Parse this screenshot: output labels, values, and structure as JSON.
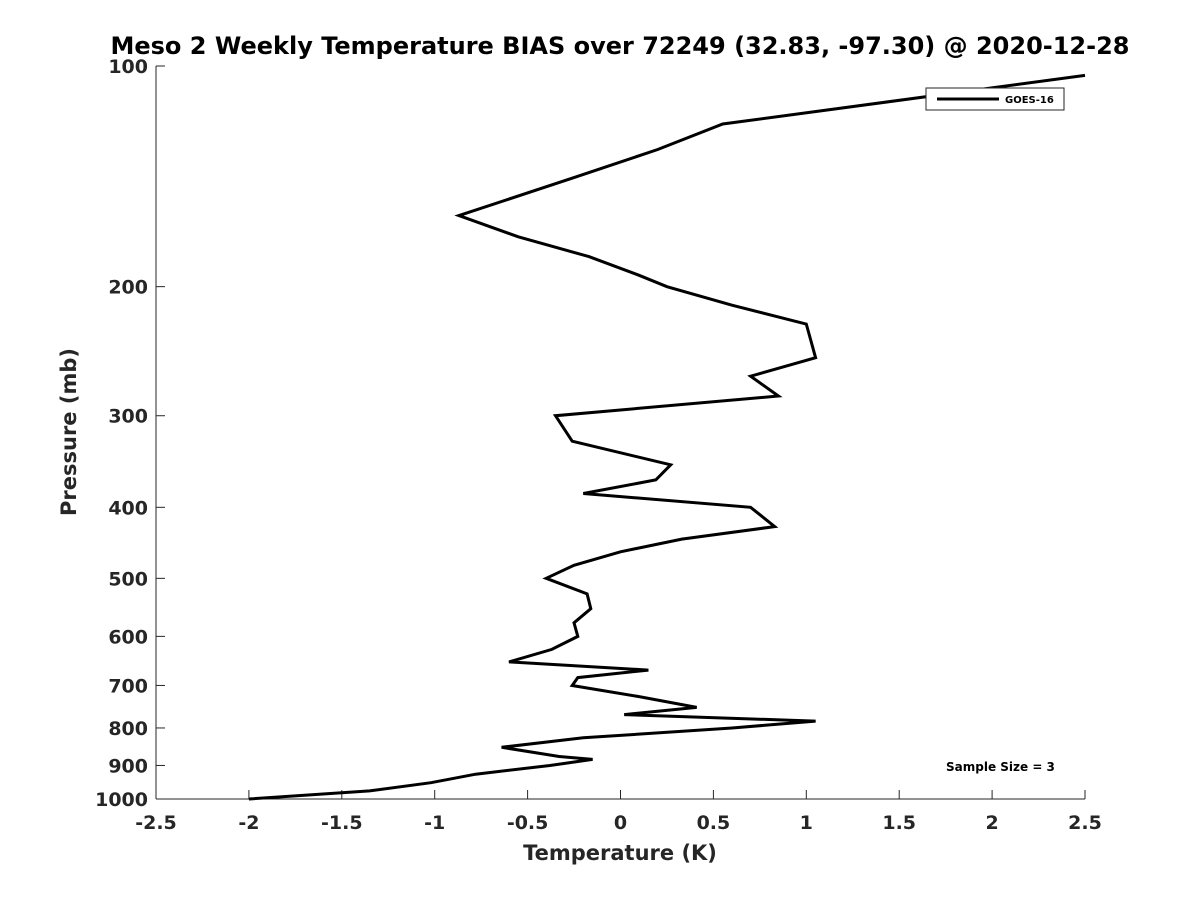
{
  "chart_data": {
    "type": "line",
    "title": "Meso 2 Weekly Temperature BIAS over 72249 (32.83, -97.30) @ 2020-12-28",
    "xlabel": "Temperature (K)",
    "ylabel": "Pressure (mb)",
    "xlim": [
      -2.5,
      2.5
    ],
    "ylim": [
      100,
      1000
    ],
    "y_scale": "log",
    "y_reversed": true,
    "xticks": [
      -2.5,
      -2,
      -1.5,
      -1,
      -0.5,
      0,
      0.5,
      1,
      1.5,
      2,
      2.5
    ],
    "xtick_labels": [
      "-2.5",
      "-2",
      "-1.5",
      "-1",
      "-0.5",
      "0",
      "0.5",
      "1",
      "1.5",
      "2",
      "2.5"
    ],
    "yticks": [
      100,
      200,
      300,
      400,
      500,
      600,
      700,
      800,
      900,
      1000
    ],
    "ytick_labels": [
      "100",
      "200",
      "300",
      "400",
      "500",
      "600",
      "700",
      "800",
      "900",
      "1000"
    ],
    "grid": false,
    "legend_position": "top-right",
    "series": [
      {
        "name": "GOES-16",
        "color": "#000000",
        "points": [
          {
            "x": 2.5,
            "y": 103
          },
          {
            "x": 0.55,
            "y": 120
          },
          {
            "x": 0.2,
            "y": 130
          },
          {
            "x": -0.25,
            "y": 142
          },
          {
            "x": -0.87,
            "y": 160
          },
          {
            "x": -0.55,
            "y": 171
          },
          {
            "x": -0.17,
            "y": 182
          },
          {
            "x": 0.1,
            "y": 193
          },
          {
            "x": 0.25,
            "y": 200
          },
          {
            "x": 0.6,
            "y": 212
          },
          {
            "x": 1.0,
            "y": 225
          },
          {
            "x": 1.05,
            "y": 250
          },
          {
            "x": 0.7,
            "y": 265
          },
          {
            "x": 0.85,
            "y": 282
          },
          {
            "x": -0.35,
            "y": 300
          },
          {
            "x": -0.26,
            "y": 325
          },
          {
            "x": 0.27,
            "y": 350
          },
          {
            "x": 0.19,
            "y": 367
          },
          {
            "x": -0.2,
            "y": 383
          },
          {
            "x": 0.7,
            "y": 400
          },
          {
            "x": 0.83,
            "y": 425
          },
          {
            "x": 0.33,
            "y": 442
          },
          {
            "x": 0.0,
            "y": 460
          },
          {
            "x": -0.25,
            "y": 480
          },
          {
            "x": -0.4,
            "y": 500
          },
          {
            "x": -0.18,
            "y": 525
          },
          {
            "x": -0.16,
            "y": 550
          },
          {
            "x": -0.25,
            "y": 575
          },
          {
            "x": -0.23,
            "y": 600
          },
          {
            "x": -0.37,
            "y": 625
          },
          {
            "x": -0.6,
            "y": 650
          },
          {
            "x": 0.15,
            "y": 667
          },
          {
            "x": -0.23,
            "y": 683
          },
          {
            "x": -0.26,
            "y": 700
          },
          {
            "x": 0.1,
            "y": 725
          },
          {
            "x": 0.41,
            "y": 750
          },
          {
            "x": 0.02,
            "y": 767
          },
          {
            "x": 1.05,
            "y": 783
          },
          {
            "x": 0.6,
            "y": 800
          },
          {
            "x": -0.2,
            "y": 825
          },
          {
            "x": -0.64,
            "y": 850
          },
          {
            "x": -0.33,
            "y": 875
          },
          {
            "x": -0.15,
            "y": 883
          },
          {
            "x": -0.38,
            "y": 900
          },
          {
            "x": -0.78,
            "y": 925
          },
          {
            "x": -1.02,
            "y": 950
          },
          {
            "x": -1.35,
            "y": 975
          },
          {
            "x": -2.0,
            "y": 1000
          }
        ]
      }
    ],
    "annotation": "Sample Size = 3"
  }
}
